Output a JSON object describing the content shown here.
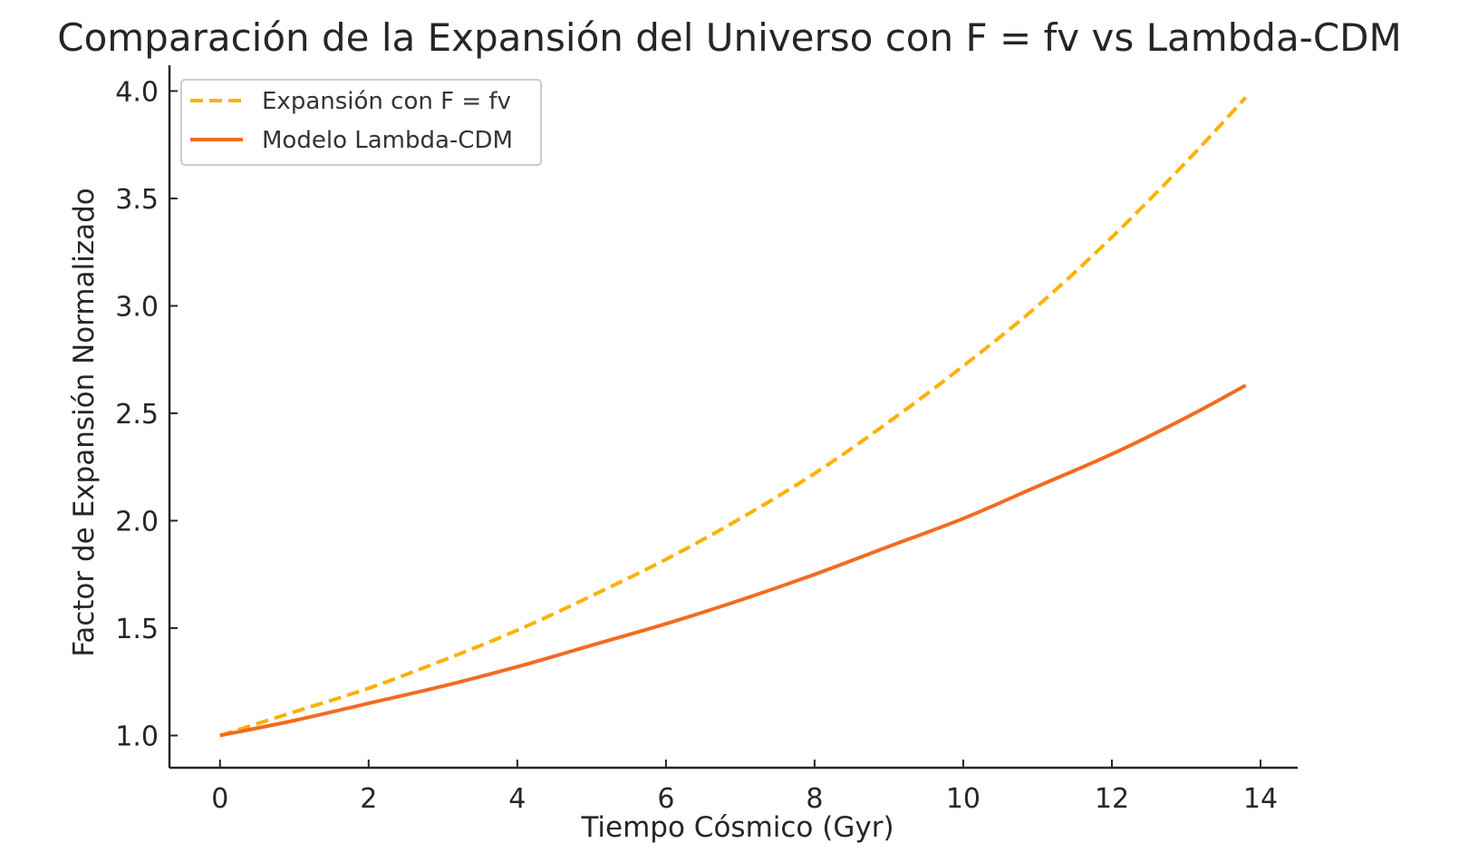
{
  "chart_data": {
    "type": "line",
    "title": "Comparación de la Expansión del Universo con F = fv vs Lambda-CDM",
    "xlabel": "Tiempo Cósmico (Gyr)",
    "ylabel": "Factor de Expansión Normalizado",
    "xlim": [
      -0.68,
      14.5
    ],
    "ylim": [
      0.85,
      4.12
    ],
    "xticks": [
      0,
      2,
      4,
      6,
      8,
      10,
      12,
      14
    ],
    "yticks": [
      1.0,
      1.5,
      2.0,
      2.5,
      3.0,
      3.5,
      4.0
    ],
    "grid": false,
    "legend_position": "top-left",
    "series": [
      {
        "name": "Expansión con F = fv",
        "color": "#FFB000",
        "style": "dashed",
        "x": [
          0,
          1,
          2,
          3,
          4,
          5,
          6,
          7,
          8,
          9,
          10,
          11,
          12,
          13,
          13.8
        ],
        "y": [
          1.0,
          1.11,
          1.22,
          1.35,
          1.49,
          1.65,
          1.82,
          2.01,
          2.22,
          2.46,
          2.72,
          3.0,
          3.32,
          3.67,
          3.97
        ]
      },
      {
        "name": "Modelo Lambda-CDM",
        "color": "#F26B21",
        "style": "solid",
        "x": [
          0,
          1,
          2,
          3,
          4,
          5,
          6,
          7,
          8,
          9,
          10,
          11,
          12,
          13,
          13.8
        ],
        "y": [
          1.0,
          1.07,
          1.15,
          1.23,
          1.32,
          1.42,
          1.52,
          1.63,
          1.75,
          1.88,
          2.01,
          2.16,
          2.31,
          2.48,
          2.63
        ]
      }
    ]
  }
}
